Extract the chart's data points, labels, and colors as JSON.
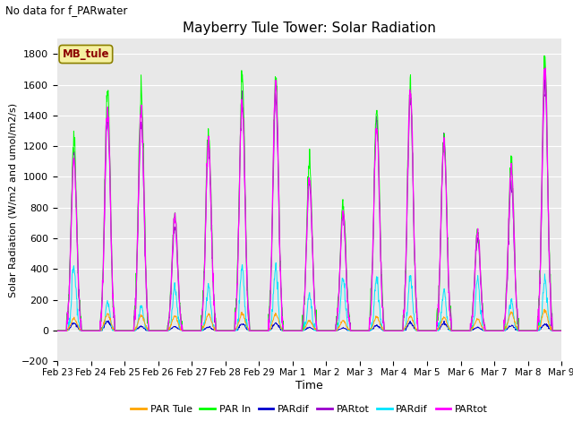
{
  "title": "Mayberry Tule Tower: Solar Radiation",
  "subtitle": "No data for f_PARwater",
  "xlabel": "Time",
  "ylabel": "Solar Radiation (W/m2 and umol/m2/s)",
  "ylim": [
    -200,
    1900
  ],
  "yticks": [
    -200,
    0,
    200,
    400,
    600,
    800,
    1000,
    1200,
    1400,
    1600,
    1800
  ],
  "bg_color": "#e8e8e8",
  "legend_label": "MB_tule",
  "legend_box_color": "#f5f0a0",
  "legend_text_color": "#8b0000",
  "series_colors": {
    "PAR_tule": "#ffa500",
    "PAR_in": "#00ff00",
    "PARdif_blue": "#0000cd",
    "PARtot_purple": "#9900cc",
    "PARdif_cyan": "#00e5ff",
    "PARtot_magenta": "#ff00ff"
  },
  "x_tick_labels": [
    "Feb 23",
    "Feb 24",
    "Feb 25",
    "Feb 26",
    "Feb 27",
    "Feb 28",
    "Feb 29",
    "Mar 1",
    "Mar 2",
    "Mar 3",
    "Mar 4",
    "Mar 5",
    "Mar 6",
    "Mar 7",
    "Mar 8",
    "Mar 9"
  ],
  "num_days": 15,
  "points_per_day": 96,
  "par_in_peaks": [
    1240,
    1560,
    1590,
    750,
    1300,
    1640,
    1640,
    1090,
    830,
    1430,
    1590,
    1280,
    650,
    1100,
    1760
  ],
  "par_tule_peaks": [
    80,
    110,
    100,
    95,
    108,
    112,
    108,
    65,
    65,
    90,
    90,
    85,
    75,
    120,
    130
  ]
}
